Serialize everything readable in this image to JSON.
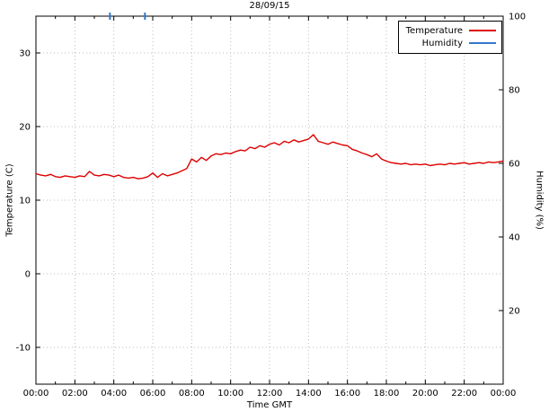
{
  "chart_data": {
    "type": "line",
    "title": "28/09/15",
    "xlabel": "Time GMT",
    "ylabel": "Temperature (C)",
    "y2label": "Humidity (%)",
    "grid": true,
    "xlim_hours": [
      0,
      24
    ],
    "ylim": [
      -15,
      35
    ],
    "y2lim": [
      0,
      100
    ],
    "x_ticks": [
      {
        "h": 0,
        "label": "00:00"
      },
      {
        "h": 2,
        "label": "02:00"
      },
      {
        "h": 4,
        "label": "04:00"
      },
      {
        "h": 6,
        "label": "06:00"
      },
      {
        "h": 8,
        "label": "08:00"
      },
      {
        "h": 10,
        "label": "10:00"
      },
      {
        "h": 12,
        "label": "12:00"
      },
      {
        "h": 14,
        "label": "14:00"
      },
      {
        "h": 16,
        "label": "16:00"
      },
      {
        "h": 18,
        "label": "18:00"
      },
      {
        "h": 20,
        "label": "20:00"
      },
      {
        "h": 22,
        "label": "22:00"
      },
      {
        "h": 24,
        "label": "00:00"
      }
    ],
    "y_ticks": [
      -10,
      0,
      10,
      20,
      30
    ],
    "y2_ticks": [
      20,
      40,
      60,
      80,
      100
    ],
    "legend": {
      "position": "top-right",
      "entries": [
        {
          "name": "Temperature",
          "color": "#dd0000"
        },
        {
          "name": "Humidity",
          "color": "#3377cc"
        }
      ]
    },
    "series": [
      {
        "name": "Temperature",
        "axis": "y1",
        "color": "#dd0000",
        "x_start_hours": 0,
        "x_step_hours": 0.25,
        "values": [
          13.6,
          13.4,
          13.3,
          13.5,
          13.2,
          13.1,
          13.3,
          13.2,
          13.1,
          13.3,
          13.2,
          13.9,
          13.4,
          13.3,
          13.5,
          13.4,
          13.2,
          13.4,
          13.1,
          13.0,
          13.1,
          12.9,
          13.0,
          13.2,
          13.7,
          13.1,
          13.6,
          13.3,
          13.5,
          13.7,
          14.0,
          14.3,
          15.6,
          15.2,
          15.8,
          15.4,
          16.0,
          16.3,
          16.2,
          16.4,
          16.3,
          16.6,
          16.8,
          16.7,
          17.2,
          17.0,
          17.4,
          17.2,
          17.6,
          17.8,
          17.5,
          18.0,
          17.8,
          18.2,
          17.9,
          18.1,
          18.3,
          18.9,
          18.0,
          17.8,
          17.6,
          17.9,
          17.7,
          17.5,
          17.4,
          16.9,
          16.7,
          16.4,
          16.2,
          15.9,
          16.3,
          15.6,
          15.3,
          15.1,
          15.0,
          14.9,
          15.0,
          14.8,
          14.9,
          14.8,
          14.9,
          14.7,
          14.8,
          14.9,
          14.8,
          15.0,
          14.9,
          15.0,
          15.1,
          14.9,
          15.0,
          15.1,
          15.0,
          15.2,
          15.1,
          15.2,
          15.3
        ]
      },
      {
        "name": "Humidity",
        "axis": "y2",
        "color": "#3377cc",
        "visible_mark_value": 100,
        "visible_marks_hours": [
          3.8,
          5.6
        ]
      }
    ]
  }
}
